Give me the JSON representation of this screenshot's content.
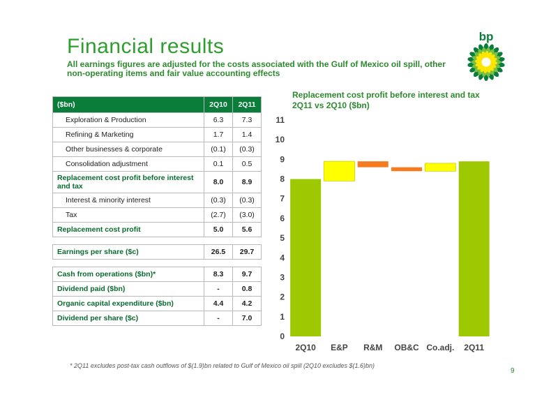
{
  "title": "Financial results",
  "subtitle": "All earnings figures are adjusted for the costs associated with the Gulf of Mexico oil spill, other non-operating items and fair value accounting effects",
  "logo_text": "bp",
  "table1": {
    "header": [
      "($bn)",
      "2Q10",
      "2Q11"
    ],
    "rows": [
      {
        "label": "Exploration & Production",
        "q10": "6.3",
        "q11": "7.3"
      },
      {
        "label": "Refining & Marketing",
        "q10": "1.7",
        "q11": "1.4"
      },
      {
        "label": "Other businesses & corporate",
        "q10": "(0.1)",
        "q11": "(0.3)"
      },
      {
        "label": "Consolidation adjustment",
        "q10": "0.1",
        "q11": "0.5"
      },
      {
        "label": "Replacement cost profit before interest and tax",
        "q10": "8.0",
        "q11": "8.9"
      },
      {
        "label": "Interest & minority interest",
        "q10": "(0.3)",
        "q11": "(0.3)"
      },
      {
        "label": "Tax",
        "q10": "(2.7)",
        "q11": "(3.0)"
      },
      {
        "label": "Replacement cost profit",
        "q10": "5.0",
        "q11": "5.6"
      }
    ]
  },
  "table2": {
    "rows": [
      {
        "label": "Earnings per share ($c)",
        "q10": "26.5",
        "q11": "29.7"
      }
    ]
  },
  "table3": {
    "rows": [
      {
        "label": "Cash from operations ($bn)*",
        "q10": "8.3",
        "q11": "9.7"
      },
      {
        "label": "Dividend paid ($bn)",
        "q10": "-",
        "q11": "0.8"
      },
      {
        "label": "Organic capital expenditure ($bn)",
        "q10": "4.4",
        "q11": "4.2"
      },
      {
        "label": "Dividend per share ($c)",
        "q10": "-",
        "q11": "7.0"
      }
    ]
  },
  "chart_data": {
    "type": "bar",
    "subtype": "waterfall",
    "title": "Replacement cost profit before interest and tax\n2Q11 vs 2Q10 ($bn)",
    "categories": [
      "2Q10",
      "E&P",
      "R&M",
      "OB&C",
      "Co.adj.",
      "2Q11"
    ],
    "bars": [
      {
        "category": "2Q10",
        "start": 0,
        "end": 8.0,
        "color": "#9ec800"
      },
      {
        "category": "E&P",
        "start": 7.9,
        "end": 8.9,
        "color": "#ffff00"
      },
      {
        "category": "R&M",
        "start": 8.6,
        "end": 8.9,
        "color": "#f47b20"
      },
      {
        "category": "OB&C",
        "start": 8.4,
        "end": 8.6,
        "color": "#f47b20"
      },
      {
        "category": "Co.adj.",
        "start": 8.4,
        "end": 8.8,
        "color": "#ffff00"
      },
      {
        "category": "2Q11",
        "start": 0,
        "end": 8.9,
        "color": "#9ec800"
      }
    ],
    "ylim": [
      0,
      11
    ],
    "yticks": [
      "0",
      "1",
      "2",
      "3",
      "4",
      "5",
      "6",
      "7",
      "8",
      "9",
      "10",
      "11"
    ],
    "grid": false
  },
  "footnote": "*    2Q11 excludes post-tax cash outflows of $(1.9)bn related to Gulf of Mexico oil spill (2Q10 excludes $(1.6)bn)",
  "page_number": "9"
}
